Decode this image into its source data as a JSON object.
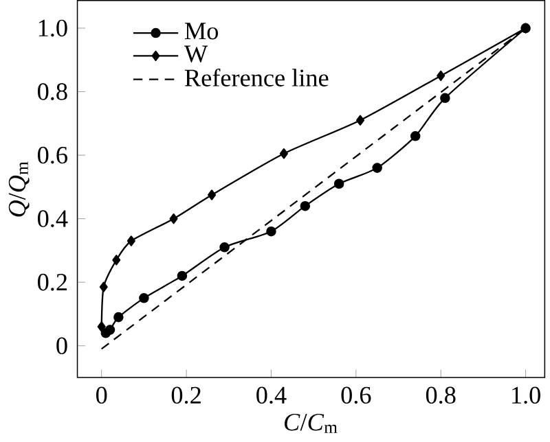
{
  "chart_data": {
    "type": "line",
    "xlabel": "*C*/*C*$_{m}$",
    "ylabel": "*Q*/*Q*$_{m}$",
    "xlim": [
      -0.057,
      1.045
    ],
    "ylim": [
      -0.1,
      1.087
    ],
    "xticks": [
      0,
      0.2,
      0.4,
      0.6,
      0.8,
      {
        "value": 1,
        "label": "1.0"
      }
    ],
    "yticks": [
      0,
      0.2,
      0.4,
      0.6,
      0.8,
      {
        "value": 1,
        "label": "1.0"
      }
    ],
    "legend": "top left",
    "grid": false,
    "series": [
      {
        "name": "Mo",
        "color": "#000000",
        "marker": "circle",
        "line_style": "solid",
        "x": [
          0.01,
          0.02,
          0.04,
          0.1,
          0.19,
          0.29,
          0.4,
          0.48,
          0.56,
          0.65,
          0.74,
          0.81,
          1.0
        ],
        "values": [
          0.04,
          0.05,
          0.09,
          0.15,
          0.22,
          0.31,
          0.36,
          0.44,
          0.51,
          0.56,
          0.66,
          0.78,
          1.0
        ]
      },
      {
        "name": "W",
        "color": "#000000",
        "marker": "diamond",
        "line_style": "solid",
        "x": [
          0.0,
          0.005,
          0.035,
          0.07,
          0.17,
          0.26,
          0.43,
          0.61,
          0.8,
          1.0
        ],
        "values": [
          0.06,
          0.185,
          0.27,
          0.33,
          0.4,
          0.475,
          0.605,
          0.71,
          0.85,
          1.0
        ]
      },
      {
        "name": "Reference line",
        "color": "#000000",
        "marker": "none",
        "line_style": "dashed",
        "x": [
          0.0,
          1.0
        ],
        "values": [
          -0.01,
          1.0
        ]
      }
    ]
  }
}
